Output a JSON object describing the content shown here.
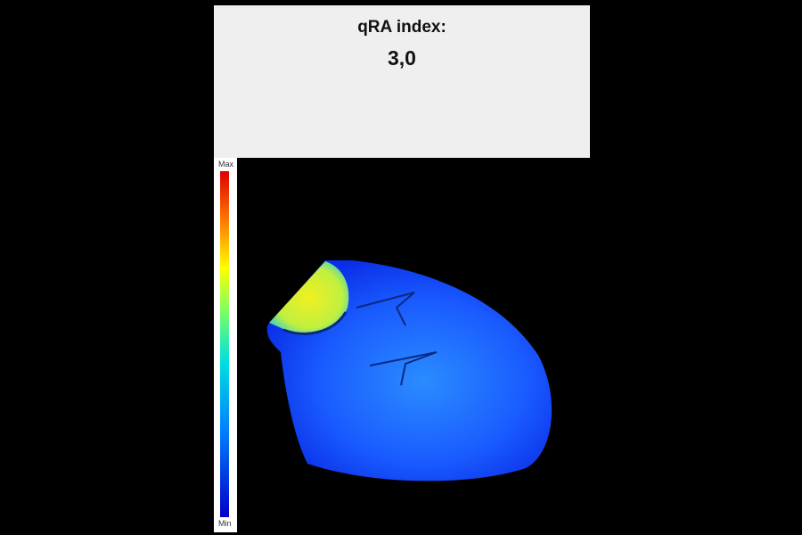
{
  "header": {
    "title": "qRA index:",
    "value": "3,0"
  },
  "colorbar": {
    "max_label": "Max",
    "min_label": "Min"
  }
}
